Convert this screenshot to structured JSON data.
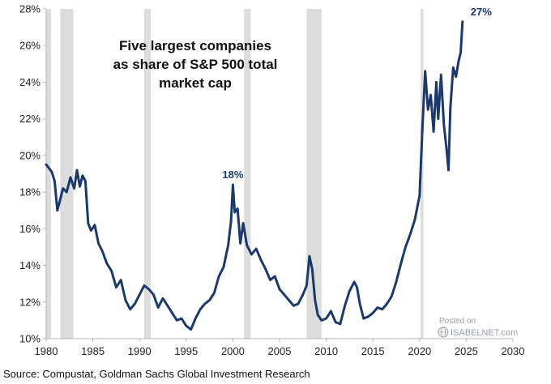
{
  "chart_data": {
    "type": "line",
    "title_lines": [
      "Five largest companies",
      "as share of S&P 500 total",
      "market cap"
    ],
    "xlabel": "",
    "ylabel": "",
    "xlim": [
      1980,
      2030
    ],
    "ylim": [
      10,
      28
    ],
    "x_ticks": [
      1980,
      1985,
      1990,
      1995,
      2000,
      2005,
      2010,
      2015,
      2020,
      2025,
      2030
    ],
    "x_tick_labels": [
      "1980",
      "1985",
      "1990",
      "1995",
      "2000",
      "2005",
      "2010",
      "2015",
      "2020",
      "2025",
      "2030"
    ],
    "y_ticks": [
      10,
      12,
      14,
      16,
      18,
      20,
      22,
      24,
      26,
      28
    ],
    "y_tick_labels": [
      "10%",
      "12%",
      "14%",
      "16%",
      "18%",
      "20%",
      "22%",
      "24%",
      "26%",
      "28%"
    ],
    "grid": false,
    "recessions": [
      [
        1980.0,
        1980.5
      ],
      [
        1981.5,
        1982.9
      ],
      [
        1990.5,
        1991.2
      ],
      [
        2001.2,
        2001.9
      ],
      [
        2007.9,
        2009.5
      ],
      [
        2020.1,
        2020.4
      ]
    ],
    "series": [
      {
        "name": "Five largest companies share of S&P 500 market cap",
        "color": "#1b3a6b",
        "x": [
          1980.0,
          1980.3,
          1980.6,
          1980.9,
          1981.2,
          1981.5,
          1981.8,
          1982.2,
          1982.6,
          1983.0,
          1983.3,
          1983.6,
          1983.9,
          1984.2,
          1984.5,
          1984.8,
          1985.2,
          1985.6,
          1986.0,
          1986.5,
          1987.0,
          1987.5,
          1988.0,
          1988.5,
          1989.0,
          1989.5,
          1990.0,
          1990.5,
          1991.0,
          1991.5,
          1992.0,
          1992.5,
          1993.0,
          1993.5,
          1994.0,
          1994.5,
          1995.0,
          1995.5,
          1996.0,
          1996.5,
          1997.0,
          1997.5,
          1998.0,
          1998.5,
          1999.0,
          1999.5,
          1999.8,
          2000.0,
          2000.2,
          2000.5,
          2000.8,
          2001.1,
          2001.5,
          2002.0,
          2002.5,
          2003.0,
          2003.5,
          2004.0,
          2004.5,
          2005.0,
          2005.5,
          2006.0,
          2006.5,
          2007.0,
          2007.5,
          2007.9,
          2008.2,
          2008.5,
          2008.8,
          2009.1,
          2009.5,
          2010.0,
          2010.5,
          2011.0,
          2011.5,
          2012.0,
          2012.5,
          2013.0,
          2013.3,
          2013.6,
          2014.0,
          2014.5,
          2015.0,
          2015.5,
          2016.0,
          2016.5,
          2017.0,
          2017.5,
          2018.0,
          2018.5,
          2019.0,
          2019.5,
          2020.0,
          2020.3,
          2020.6,
          2020.9,
          2021.2,
          2021.5,
          2021.8,
          2022.0,
          2022.3,
          2022.6,
          2022.9,
          2023.1,
          2023.3,
          2023.6,
          2023.9,
          2024.2,
          2024.4,
          2024.6
        ],
        "values": [
          19.5,
          19.3,
          19.1,
          18.6,
          17.0,
          17.6,
          18.2,
          18.0,
          18.8,
          18.2,
          19.2,
          18.3,
          18.9,
          18.6,
          16.3,
          15.9,
          16.2,
          15.2,
          14.8,
          14.1,
          13.7,
          12.8,
          13.2,
          12.1,
          11.6,
          11.9,
          12.4,
          12.9,
          12.7,
          12.4,
          11.7,
          12.2,
          11.8,
          11.4,
          11.0,
          11.1,
          10.7,
          10.5,
          11.1,
          11.6,
          11.9,
          12.1,
          12.5,
          13.4,
          13.9,
          15.1,
          16.4,
          18.4,
          16.9,
          17.1,
          15.2,
          16.3,
          15.1,
          14.6,
          14.9,
          14.3,
          13.8,
          13.2,
          13.4,
          12.7,
          12.4,
          12.1,
          11.8,
          11.9,
          12.4,
          12.9,
          14.5,
          13.8,
          12.1,
          11.3,
          11.0,
          11.1,
          11.5,
          10.9,
          10.8,
          11.8,
          12.6,
          13.1,
          12.8,
          11.9,
          11.1,
          11.2,
          11.4,
          11.7,
          11.6,
          11.9,
          12.3,
          13.1,
          14.1,
          15.0,
          15.7,
          16.5,
          17.8,
          21.5,
          24.6,
          22.5,
          23.3,
          21.3,
          24.0,
          22.0,
          24.4,
          21.7,
          20.3,
          19.2,
          22.6,
          24.8,
          24.3,
          25.2,
          25.6,
          27.3
        ]
      }
    ],
    "annotations": [
      {
        "text": "18%",
        "x": 2000.0,
        "y": 18.4
      },
      {
        "text": "27%",
        "x": 2024.6,
        "y": 27.3
      }
    ]
  },
  "source_text": "Source: Compustat, Goldman Sachs Global Investment Research",
  "watermark": {
    "posted": "Posted on",
    "site": "ISABELNET.com"
  },
  "colors": {
    "line": "#1b3a6b",
    "recession": "#dcdcdc",
    "axis": "#b5b5b5"
  }
}
